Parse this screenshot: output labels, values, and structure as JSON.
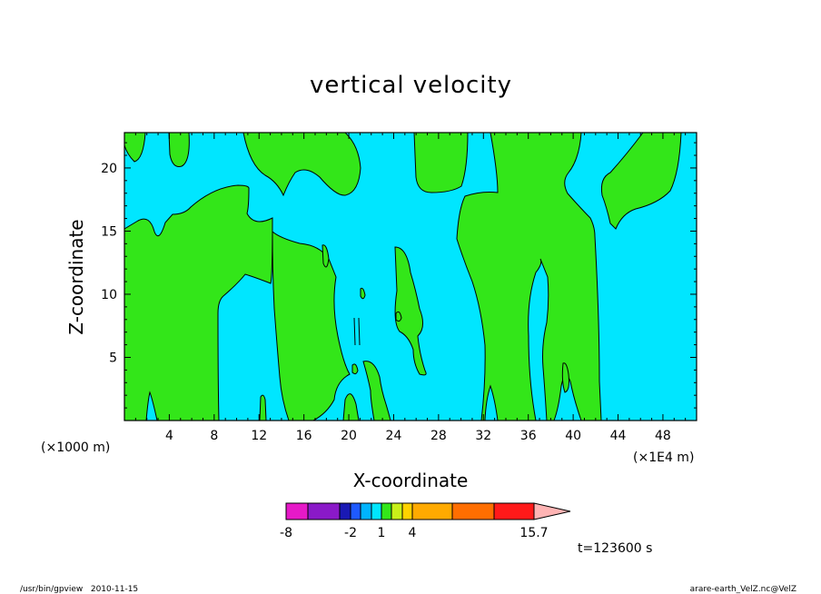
{
  "chart_data": {
    "type": "heatmap",
    "title": "vertical velocity",
    "xlabel": "X-coordinate",
    "ylabel": "Z-coordinate",
    "x_unit_label": "(×1000 m)",
    "x_unit_label_right": "(×1E4 m)",
    "xlim": [
      0,
      51
    ],
    "ylim": [
      0,
      22.8
    ],
    "x_ticks": [
      4,
      8,
      12,
      16,
      20,
      24,
      28,
      32,
      36,
      40,
      44,
      48
    ],
    "y_ticks": [
      5,
      10,
      15,
      20
    ],
    "field_colors": {
      "positive": "#33e619",
      "near_zero": "#00e6ff"
    },
    "colorbar": {
      "colors": [
        "#e619c8",
        "#8a19c8",
        "#1919b4",
        "#1e5aff",
        "#00b4ff",
        "#00e6ff",
        "#33e619",
        "#c8f019",
        "#ffd200",
        "#ffaa00",
        "#ff6e00",
        "#ff1919",
        "#ff8080",
        "#ffb4b4"
      ],
      "tick_labels": [
        "-8",
        "-2",
        "1",
        "4",
        "15.7"
      ]
    },
    "time_label": "t=123600 s"
  },
  "footer": {
    "left": "/usr/bin/gpview   2010-11-15",
    "right": "arare-earth_VelZ.nc@VelZ"
  }
}
